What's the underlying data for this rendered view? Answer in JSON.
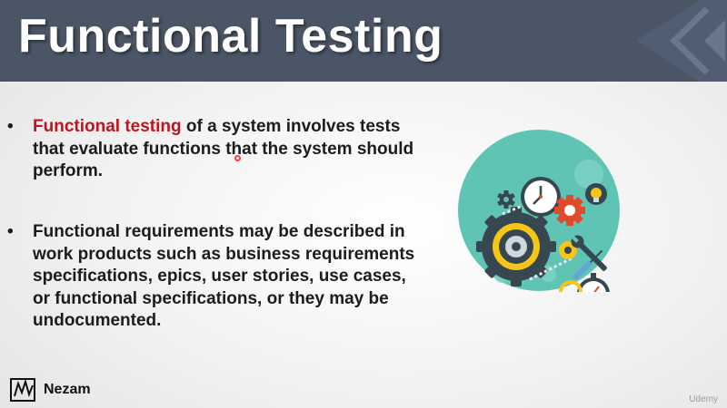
{
  "slide": {
    "title": "Functional Testing",
    "bullets": [
      {
        "marker": "•",
        "highlight": "Functional testing",
        "rest": " of a system involves tests that evaluate functions that the system should perform."
      },
      {
        "marker": "•",
        "text": "Functional requirements may be described in work products such as business requirements specifications, epics, user stories, use cases, or functional specifications, or they may be undocumented."
      }
    ]
  },
  "footer": {
    "brand": "Nezam",
    "watermark": "Udemy"
  },
  "colors": {
    "header_bg": "#4a5566",
    "title_text": "#ffffff",
    "highlight": "#c0141f",
    "body_text": "#1c1c1c",
    "illustration_bg": "#5fc4b4",
    "gear_dark": "#37474f",
    "gear_red": "#e24a2d",
    "gear_yellow": "#f5c518"
  },
  "icons": [
    "gears-illustration-icon",
    "clock-icon",
    "stopwatch-icon",
    "lightbulb-icon",
    "wrench-icon",
    "screwdriver-icon",
    "nezam-logo-icon",
    "mouse-cursor-icon"
  ]
}
